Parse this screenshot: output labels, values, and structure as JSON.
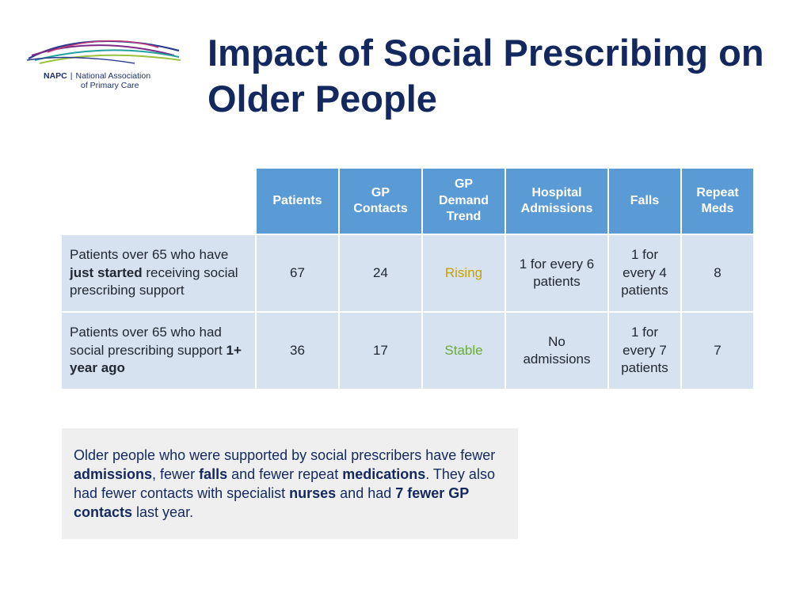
{
  "logo": {
    "abbr": "NAPC",
    "separator": "|",
    "name_line1": "National Association",
    "name_line2": "of Primary Care",
    "colors": [
      "#2a3a8f",
      "#7d2a86",
      "#20a39e",
      "#9ac23c",
      "#c23b7a"
    ]
  },
  "title": "Impact of Social Prescribing on Older People",
  "table": {
    "headers": [
      "Patients",
      "GP\nContacts",
      "GP\nDemand\nTrend",
      "Hospital\nAdmissions",
      "Falls",
      "Repeat\nMeds"
    ],
    "rows": [
      {
        "label_pre": "Patients over 65 who have ",
        "label_bold": "just started",
        "label_post": " receiving social prescribing support",
        "patients": "67",
        "gp_contacts": "24",
        "trend": "Rising",
        "trend_color": "#c9a000",
        "admissions": "1 for every 6\npatients",
        "falls": "1 for\nevery 4\npatients",
        "repeat_meds": "8"
      },
      {
        "label_pre": "Patients over 65 who had social prescribing support ",
        "label_bold": "1+ year ago",
        "label_post": "",
        "patients": "36",
        "gp_contacts": "17",
        "trend": "Stable",
        "trend_color": "#6aaa3a",
        "admissions": "No\nadmissions",
        "falls": "1 for\nevery 7\npatients",
        "repeat_meds": "7"
      }
    ]
  },
  "note": {
    "t1": "Older people who were supported by social prescribers have fewer ",
    "b1": "admissions",
    "t2": ", fewer ",
    "b2": "falls",
    "t3": " and fewer repeat ",
    "b3": "medications",
    "t4": ". They also had fewer contacts with specialist ",
    "b4": "nurses",
    "t5": " and had ",
    "b5": "7 fewer GP contacts",
    "t6": " last year."
  }
}
